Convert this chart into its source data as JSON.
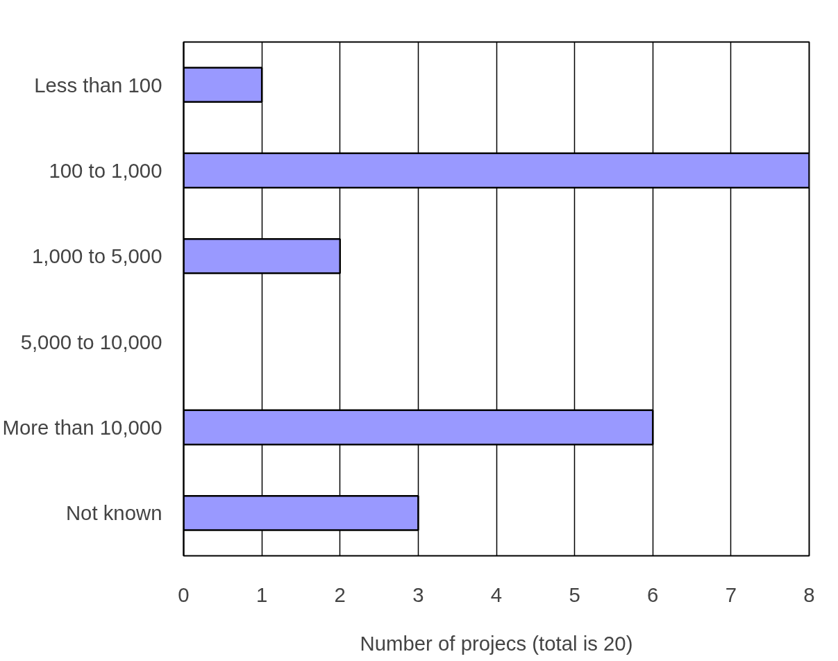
{
  "chart_data": {
    "type": "bar",
    "orientation": "horizontal",
    "categories": [
      "Less than 100",
      "100 to 1,000",
      "1,000 to 5,000",
      "5,000 to 10,000",
      "More than 10,000",
      "Not known"
    ],
    "values": [
      1,
      8,
      2,
      0,
      6,
      3
    ],
    "color": "#9999ff",
    "xlabel": "Number of projecs (total is 20)",
    "xlim": [
      0,
      8
    ],
    "xticks": [
      0,
      1,
      2,
      3,
      4,
      5,
      6,
      7,
      8
    ],
    "grid": "x"
  }
}
